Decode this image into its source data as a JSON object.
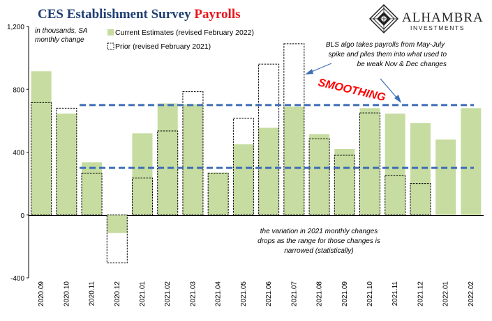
{
  "title": {
    "part1": "CES Establishment Survey ",
    "part2": "Payrolls"
  },
  "logo": {
    "name": "ALHAMBRA",
    "sub": "INVESTMENTS"
  },
  "colors": {
    "title_part1": "#1f3f73",
    "title_part2": "#e8151b",
    "current_fill": "#c6dca0",
    "prior_stroke": "#000000",
    "band_line": "#3d6db5",
    "smoothing_text": "#ff0000",
    "arrow": "#3d6db5"
  },
  "units_note": [
    "in thousands, SA",
    "monthly change"
  ],
  "annotations": {
    "top": [
      "BLS algo takes payrolls from May-July",
      "spike and piles them into what used to",
      "be weak Nov & Dec changes"
    ],
    "smoothing": "SMOOTHING",
    "bottom": [
      "the variation in 2021 monthly changes",
      "drops as the range for those changes is",
      "narrowed (statistically)"
    ]
  },
  "chart_data": {
    "type": "bar",
    "categories": [
      "2020.09",
      "2020.10",
      "2020.11",
      "2020.12",
      "2021.01",
      "2021.02",
      "2021.03",
      "2021.04",
      "2021.05",
      "2021.06",
      "2021.07",
      "2021.08",
      "2021.09",
      "2021.10",
      "2021.11",
      "2021.12",
      "2022.01",
      "2022.02"
    ],
    "series": [
      {
        "name": "Current Estimates (revised February 2022)",
        "style": "filled",
        "values": [
          915,
          645,
          335,
          -115,
          520,
          710,
          705,
          270,
          450,
          555,
          690,
          515,
          420,
          680,
          645,
          585,
          480,
          680
        ]
      },
      {
        "name": "Prior (revised February 2021)",
        "style": "dashed-outline",
        "values": [
          715,
          680,
          265,
          -305,
          235,
          535,
          785,
          265,
          615,
          960,
          1090,
          485,
          380,
          650,
          250,
          200,
          null,
          null
        ]
      }
    ],
    "reference_lines": [
      700,
      300
    ],
    "ylim": [
      -400,
      1200
    ],
    "yticks": [
      -400,
      0,
      400,
      800,
      "1,200"
    ],
    "xlabel": "",
    "ylabel": "",
    "grid": false,
    "legend_position": "top-left"
  }
}
